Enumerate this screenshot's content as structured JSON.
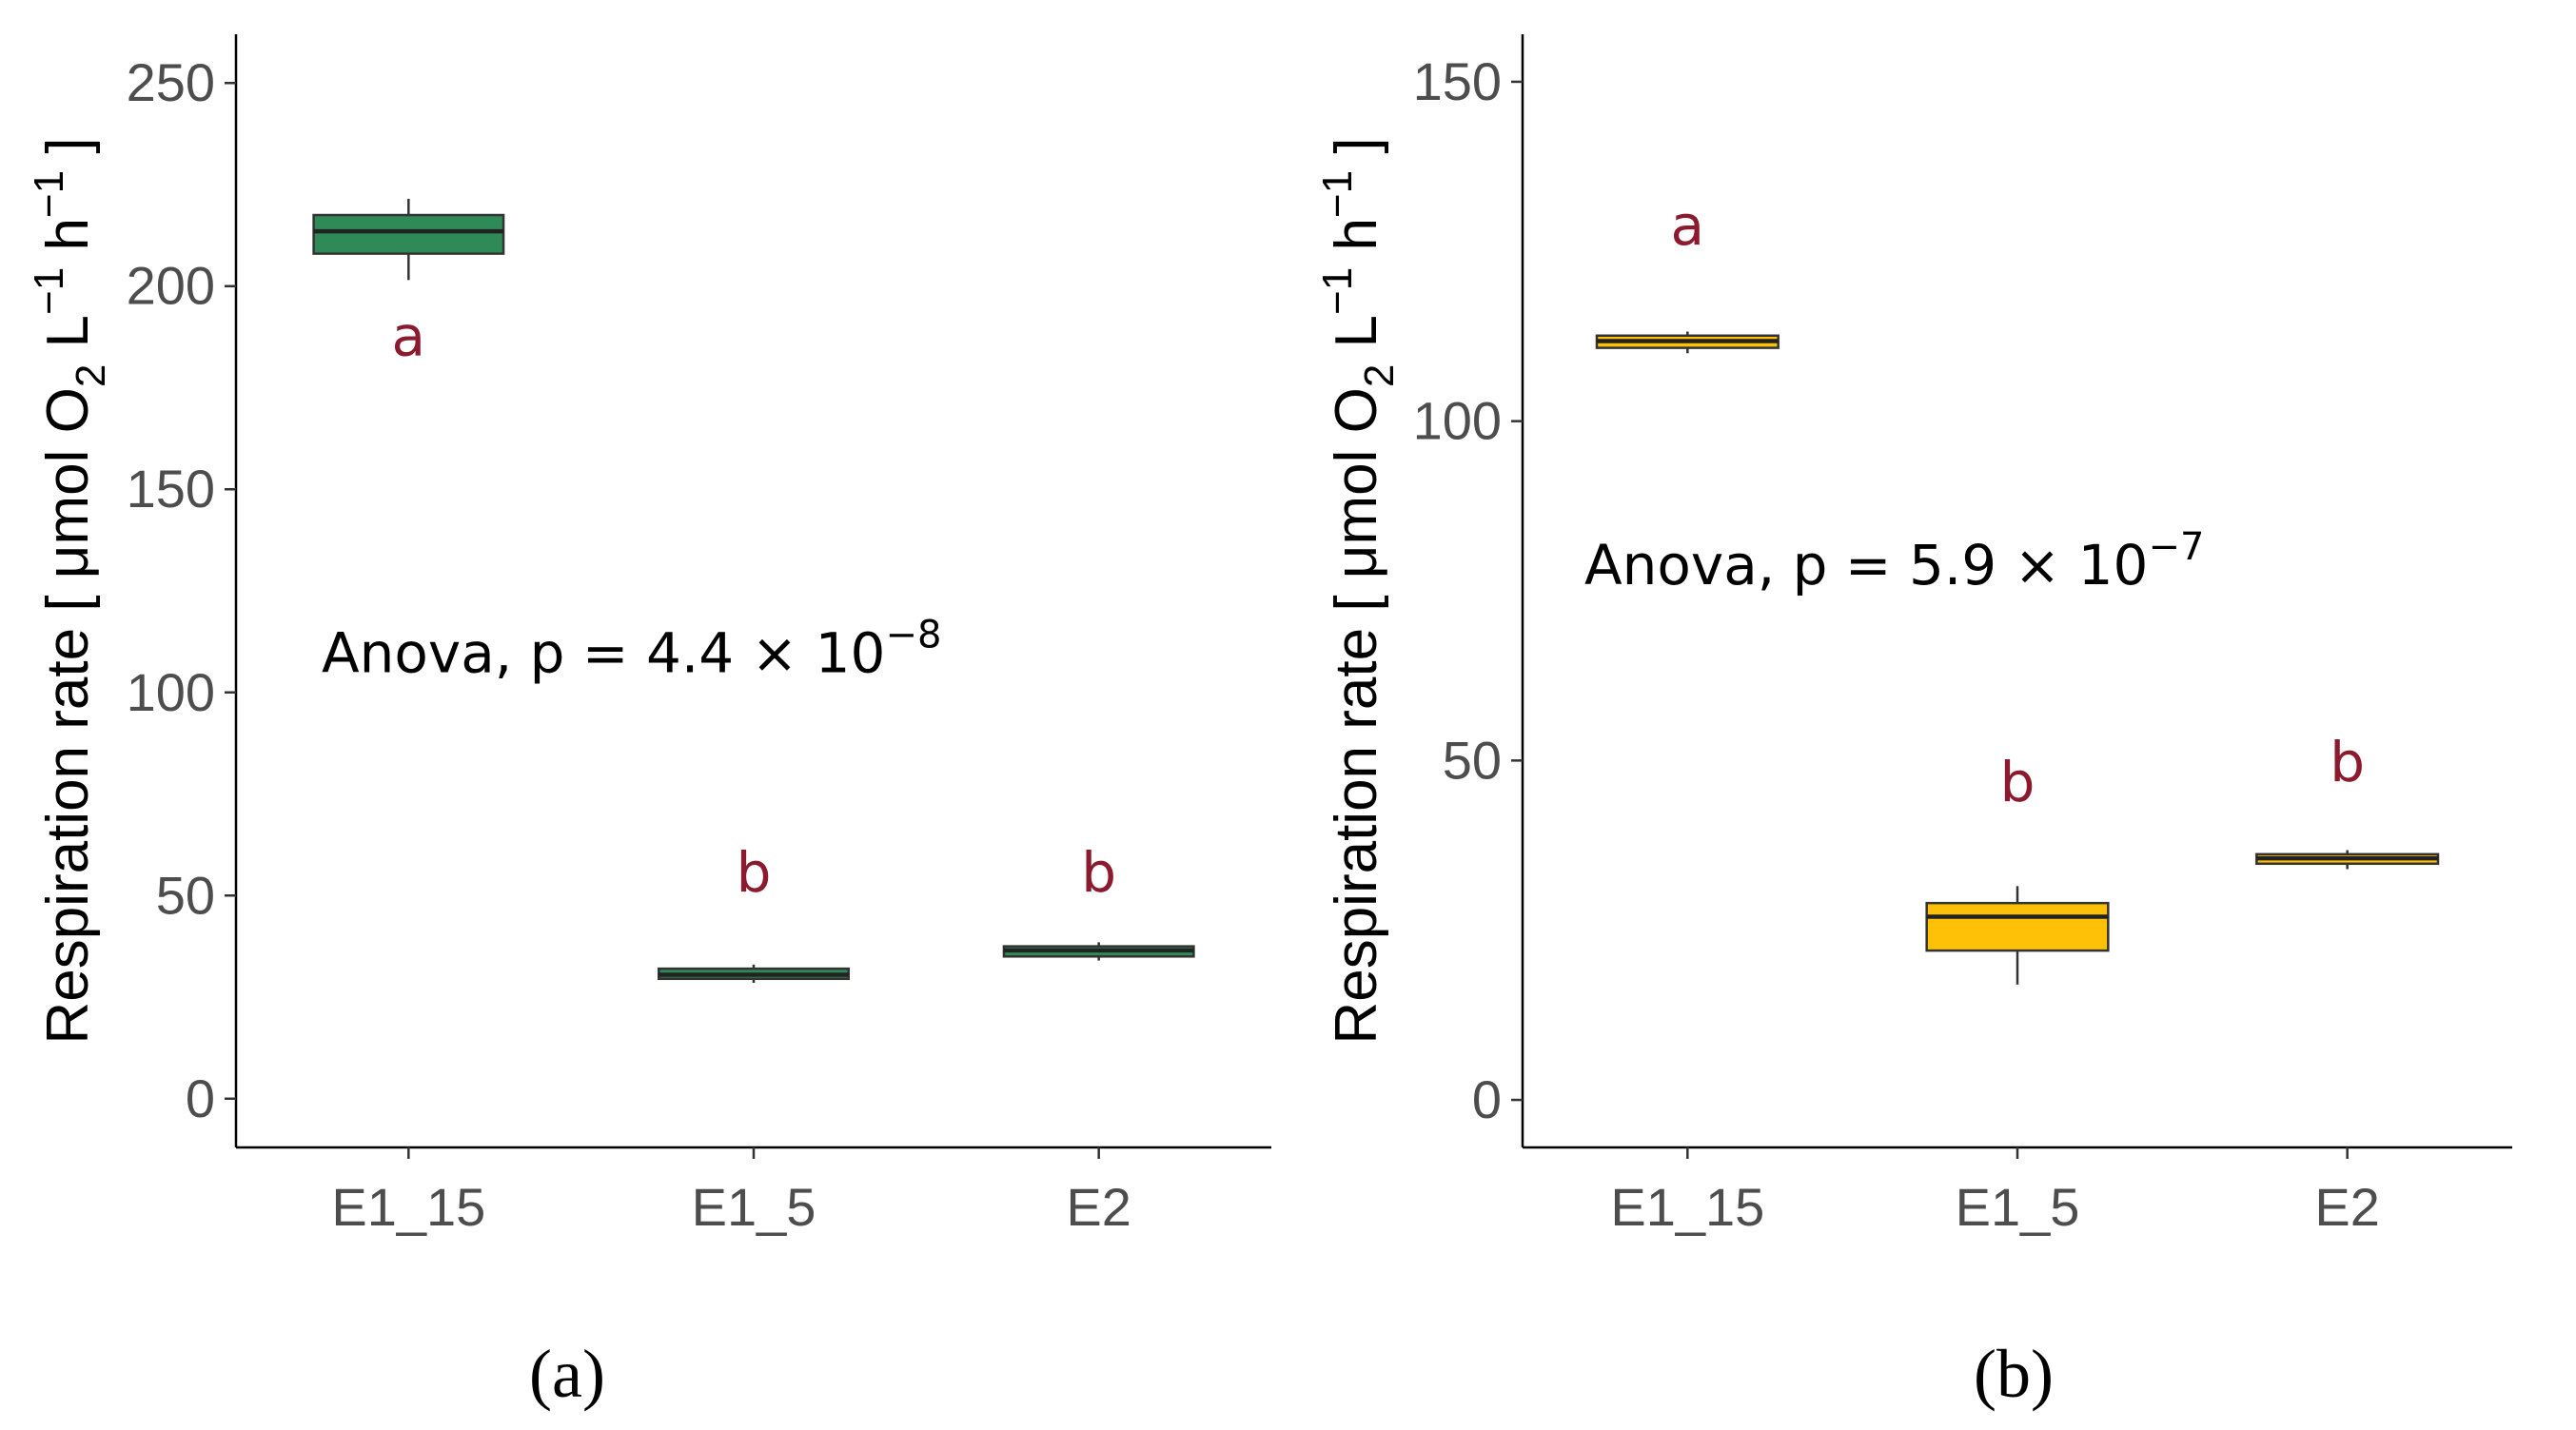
{
  "chart_data": [
    {
      "type": "box",
      "panel_label": "(a)",
      "categories": [
        "E1_15",
        "E1_5",
        "E2"
      ],
      "ylabel_main": "Respiration rate [ μmol O",
      "ylabel_sub": "2",
      "ylabel_L": " L",
      "ylabel_h": " h",
      "ylabel_sup": "−1",
      "ylabel_end": " ]",
      "ylim": [
        -12,
        262
      ],
      "yticks": [
        0,
        50,
        100,
        150,
        200,
        250
      ],
      "fill_color": "#2e8b57",
      "boxes": [
        {
          "category": "E1_15",
          "min": 201.5,
          "q1": 208,
          "median": 213.5,
          "q3": 217.5,
          "max": 221.5,
          "letter": "a",
          "letter_y": 183
        },
        {
          "category": "E1_5",
          "min": 28.5,
          "q1": 29.5,
          "median": 30.5,
          "q3": 32,
          "max": 33,
          "letter": "b",
          "letter_y": 51
        },
        {
          "category": "E2",
          "min": 34,
          "q1": 35,
          "median": 36.5,
          "q3": 37.5,
          "max": 38.5,
          "letter": "b",
          "letter_y": 51
        }
      ],
      "annotation": {
        "base": "Anova, p = 4.4 × 10",
        "exp": "−8",
        "x_pos": 0.2,
        "y_val": 105
      }
    },
    {
      "type": "box",
      "panel_label": "(b)",
      "categories": [
        "E1_15",
        "E1_5",
        "E2"
      ],
      "ylabel_main": "Respiration rate [ μmol O",
      "ylabel_sub": "2",
      "ylabel_L": " L",
      "ylabel_h": " h",
      "ylabel_sup": "−1",
      "ylabel_end": " ]",
      "ylim": [
        -7,
        157
      ],
      "yticks": [
        0,
        50,
        100,
        150
      ],
      "fill_color": "#ffc107",
      "boxes": [
        {
          "category": "E1_15",
          "min": 110,
          "q1": 110.8,
          "median": 111.8,
          "q3": 112.6,
          "max": 113.2,
          "letter": "a",
          "letter_y": 126
        },
        {
          "category": "E1_5",
          "min": 17,
          "q1": 22,
          "median": 27,
          "q3": 29,
          "max": 31.5,
          "letter": "b",
          "letter_y": 44
        },
        {
          "category": "E2",
          "min": 34,
          "q1": 34.8,
          "median": 35.6,
          "q3": 36.2,
          "max": 36.8,
          "letter": "b",
          "letter_y": 47
        }
      ],
      "annotation": {
        "base": "Anova, p = 5.9 × 10",
        "exp": "−7",
        "x_pos": 0.06,
        "y_val": 76
      }
    }
  ]
}
